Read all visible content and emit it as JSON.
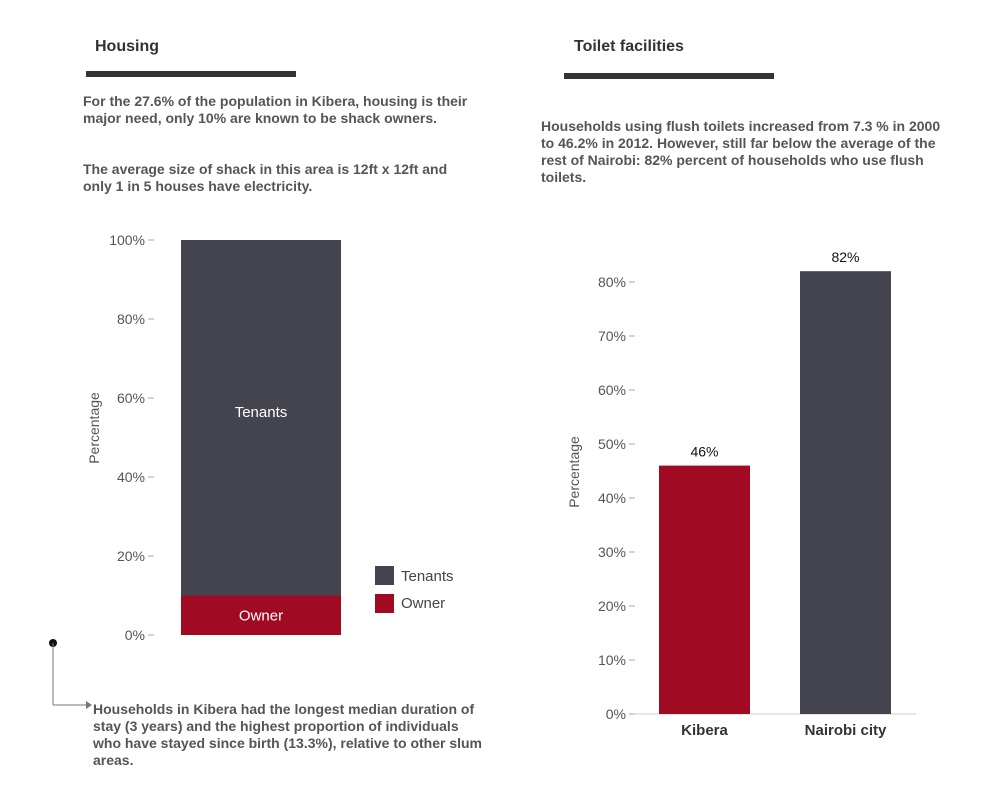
{
  "colors": {
    "tenants": "#44444f",
    "owner": "#a00a22",
    "kibera": "#a00a22",
    "nairobi": "#44444f",
    "rule": "#333333"
  },
  "housing": {
    "heading": "Housing",
    "para1": "For the 27.6% of the population in Kibera, housing is their major need, only 10% are known to be shack owners.",
    "para2": "The average size of shack in this area is 12ft x 12ft and only 1 in 5 houses have electricity.",
    "footnote": "Households in Kibera had the longest median duration of stay (3 years) and the highest proportion of individuals who have stayed since birth (13.3%), relative to other slum areas."
  },
  "toilet": {
    "heading": "Toilet facilities",
    "para": "Households using flush toilets increased from 7.3 % in 2000 to 46.2% in 2012. However, still far below the average of the rest of Nairobi: 82% percent of households who use flush toilets."
  },
  "chart_data": [
    {
      "type": "bar",
      "stacked": true,
      "ylabel": "Percentage",
      "ylim": [
        0,
        100
      ],
      "yticks": [
        "0%",
        "20%",
        "40%",
        "60%",
        "80%",
        "100%"
      ],
      "series": [
        {
          "name": "Owner",
          "values": [
            10
          ]
        },
        {
          "name": "Tenants",
          "values": [
            90
          ]
        }
      ],
      "legend": [
        "Tenants",
        "Owner"
      ],
      "legend_position": "right"
    },
    {
      "type": "bar",
      "ylabel": "Percentage",
      "ylim": [
        0,
        80
      ],
      "yticks": [
        "0%",
        "10%",
        "20%",
        "30%",
        "40%",
        "50%",
        "60%",
        "70%",
        "80%"
      ],
      "categories": [
        "Kibera",
        "Nairobi city"
      ],
      "values": [
        46,
        82
      ],
      "data_labels": [
        "46%",
        "82%"
      ]
    }
  ]
}
